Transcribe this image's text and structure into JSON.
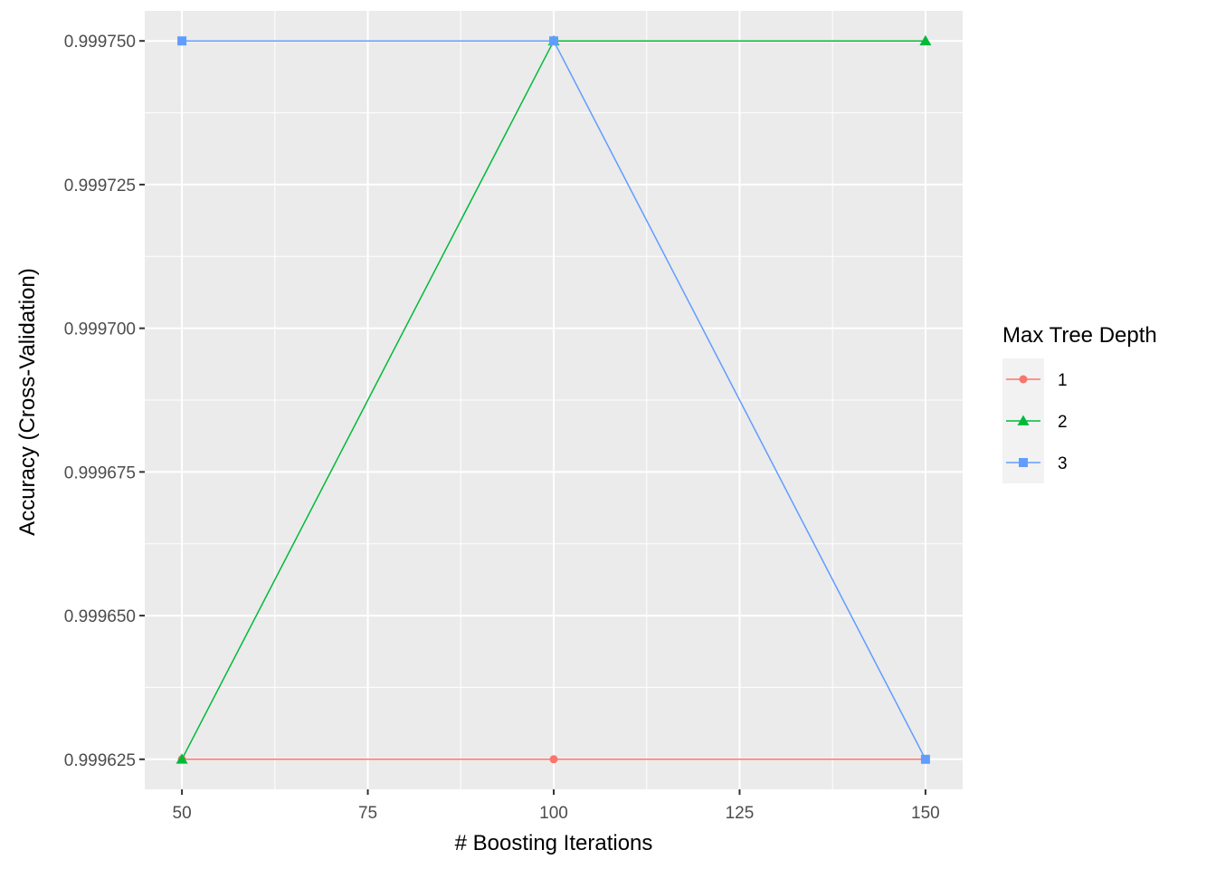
{
  "chart_data": {
    "type": "line",
    "title": "",
    "xlabel": "# Boosting Iterations",
    "ylabel": "Accuracy (Cross-Validation)",
    "x": [
      50,
      100,
      150
    ],
    "xlim": [
      45,
      155
    ],
    "ylim": [
      0.99961977,
      0.99975523
    ],
    "x_ticks": [
      50,
      75,
      100,
      125,
      150
    ],
    "x_tick_labels": [
      "50",
      "75",
      "100",
      "125",
      "150"
    ],
    "y_ticks": [
      0.999625,
      0.99965,
      0.999675,
      0.9997,
      0.999725,
      0.99975
    ],
    "y_tick_labels": [
      "0.999625",
      "0.999650",
      "0.999675",
      "0.999700",
      "0.999725",
      "0.999750"
    ],
    "grid": true,
    "legend_title": "Max Tree Depth",
    "legend_position": "right",
    "series": [
      {
        "name": "1",
        "color": "#F8766D",
        "marker": "circle",
        "values": [
          0.999625,
          0.999625,
          0.999625
        ]
      },
      {
        "name": "2",
        "color": "#00BA38",
        "marker": "triangle",
        "values": [
          0.999625,
          0.99975,
          0.99975
        ]
      },
      {
        "name": "3",
        "color": "#619CFF",
        "marker": "square",
        "values": [
          0.99975,
          0.99975,
          0.999625
        ]
      }
    ]
  }
}
